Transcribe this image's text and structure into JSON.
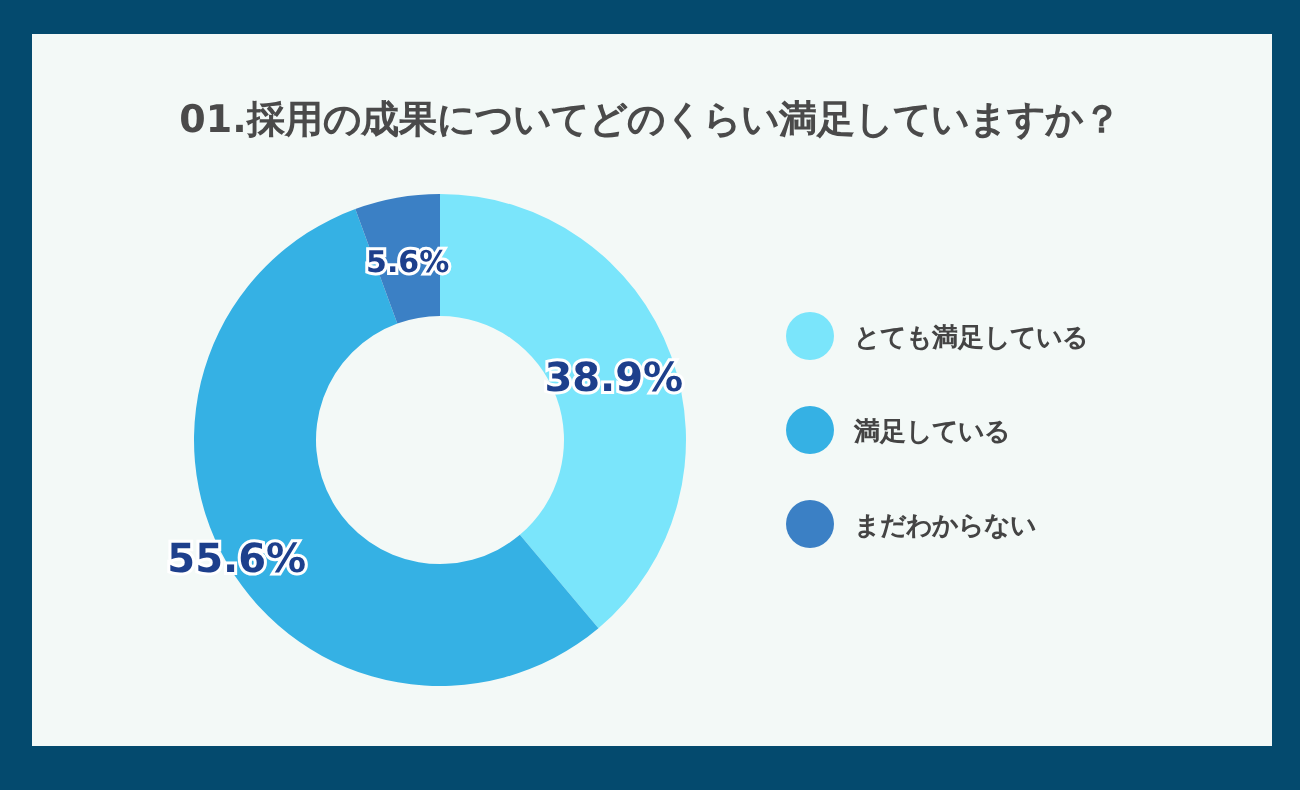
{
  "chart_data": {
    "type": "donut",
    "title": "01.採用の成果についてどのくらい満足していますか？",
    "categories": [
      "とても満足している",
      "満足している",
      "まだわからない"
    ],
    "values": [
      38.9,
      55.6,
      5.6
    ],
    "colors": [
      "#7ae5fb",
      "#35b1e4",
      "#3b80c5"
    ],
    "value_labels": [
      "38.9%",
      "55.6%",
      "5.6%"
    ],
    "legend": "right"
  }
}
